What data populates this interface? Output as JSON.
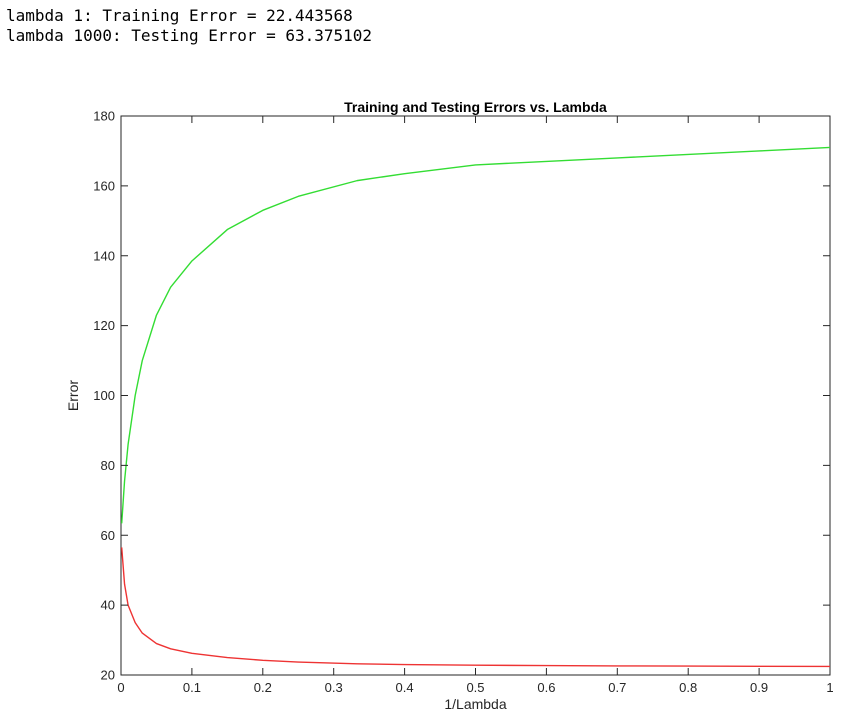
{
  "console": {
    "lines": [
      "lambda 1: Training Error = 22.443568",
      "lambda 1000: Testing Error = 63.375102"
    ]
  },
  "chart_data": {
    "type": "line",
    "title": "Training and Testing Errors vs. Lambda",
    "xlabel": "1/Lambda",
    "ylabel": "Error",
    "xlim": [
      0,
      1
    ],
    "ylim": [
      20,
      180
    ],
    "x_ticks": [
      0,
      0.1,
      0.2,
      0.3,
      0.4,
      0.5,
      0.6,
      0.7,
      0.8,
      0.9,
      1
    ],
    "x_tick_labels": [
      "0",
      "0.1",
      "0.2",
      "0.3",
      "0.4",
      "0.5",
      "0.6",
      "0.7",
      "0.8",
      "0.9",
      "1"
    ],
    "y_ticks": [
      20,
      40,
      60,
      80,
      100,
      120,
      140,
      160,
      180
    ],
    "y_tick_labels": [
      "20",
      "40",
      "60",
      "80",
      "100",
      "120",
      "140",
      "160",
      "180"
    ],
    "grid": false,
    "series": [
      {
        "color": "#33dd33",
        "x": [
          0.001,
          0.005,
          0.01,
          0.02,
          0.03,
          0.05,
          0.07,
          0.1,
          0.15,
          0.2,
          0.25,
          0.333,
          0.4,
          0.5,
          0.6,
          0.7,
          0.8,
          0.9,
          1.0
        ],
        "y": [
          63.4,
          75.5,
          86.0,
          100.0,
          110.0,
          123.0,
          131.0,
          138.5,
          147.5,
          153.0,
          157.0,
          161.5,
          163.5,
          166.0,
          167.0,
          168.0,
          169.0,
          170.0,
          171.0
        ]
      },
      {
        "color": "#ee3333",
        "x": [
          0.001,
          0.005,
          0.01,
          0.02,
          0.03,
          0.05,
          0.07,
          0.1,
          0.15,
          0.2,
          0.25,
          0.333,
          0.4,
          0.5,
          0.6,
          0.7,
          0.8,
          0.9,
          1.0
        ],
        "y": [
          56.5,
          46.0,
          40.0,
          35.0,
          32.0,
          29.0,
          27.5,
          26.2,
          25.0,
          24.2,
          23.7,
          23.2,
          23.0,
          22.8,
          22.7,
          22.6,
          22.55,
          22.5,
          22.44
        ]
      }
    ]
  }
}
